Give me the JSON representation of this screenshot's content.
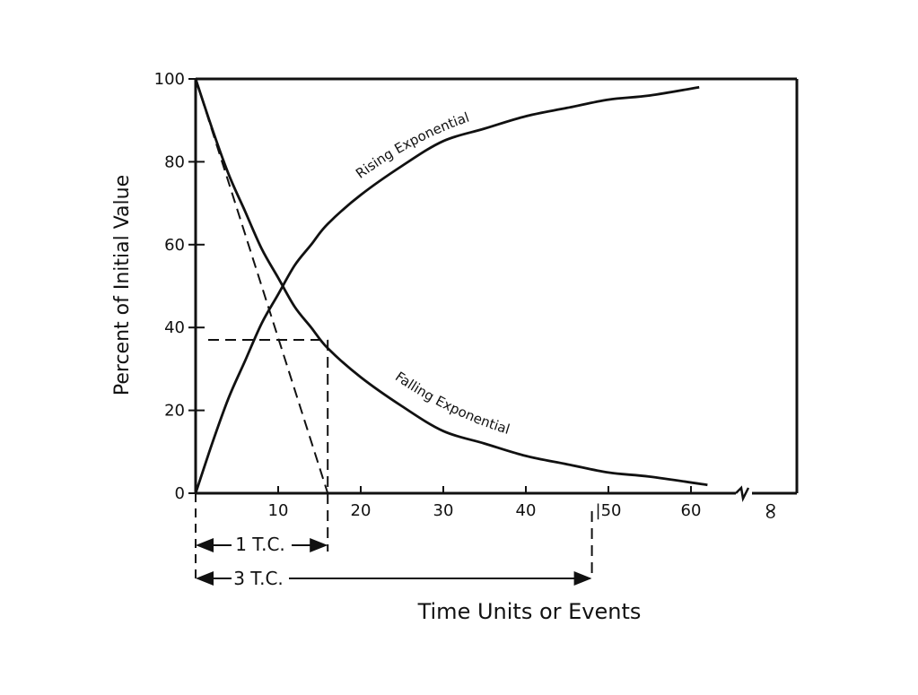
{
  "chart_data": {
    "type": "line",
    "title": "",
    "xlabel": "Time Units or Events",
    "ylabel": "Percent of Initial Value",
    "xlim": [
      0,
      72
    ],
    "ylim": [
      0,
      100
    ],
    "grid": false,
    "x_ticks": [
      {
        "value": 10,
        "label": "10"
      },
      {
        "value": 20,
        "label": "20"
      },
      {
        "value": 30,
        "label": "30"
      },
      {
        "value": 40,
        "label": "40"
      },
      {
        "value": 50,
        "label": "|50"
      },
      {
        "value": 60,
        "label": "60"
      }
    ],
    "infinity_label": "∞",
    "y_ticks": [
      {
        "value": 0,
        "label": "0"
      },
      {
        "value": 20,
        "label": "20"
      },
      {
        "value": 40,
        "label": "40"
      },
      {
        "value": 60,
        "label": "60"
      },
      {
        "value": 80,
        "label": "80"
      },
      {
        "value": 100,
        "label": "100"
      }
    ],
    "series": [
      {
        "name": "Rising Exponential",
        "x": [
          0,
          2,
          4,
          6,
          8,
          10,
          12,
          14,
          16,
          20,
          25,
          30,
          35,
          40,
          45,
          50,
          55,
          61
        ],
        "y": [
          0,
          12,
          23,
          32,
          41,
          48,
          55,
          60,
          65,
          72,
          79,
          85,
          88,
          91,
          93,
          95,
          96,
          98
        ]
      },
      {
        "name": "Falling Exponential",
        "x": [
          0,
          2,
          4,
          6,
          8,
          10,
          12,
          14,
          16,
          20,
          25,
          30,
          35,
          40,
          45,
          50,
          55,
          62
        ],
        "y": [
          100,
          88,
          77,
          68,
          59,
          52,
          45,
          40,
          35,
          28,
          21,
          15,
          12,
          9,
          7,
          5,
          4,
          2
        ]
      }
    ],
    "annotations": {
      "tangent_line": {
        "from": [
          0,
          100
        ],
        "to": [
          16,
          0
        ]
      },
      "tc_marker_y": 37,
      "one_tc": {
        "x": 16,
        "label": "1 T.C."
      },
      "three_tc": {
        "x": 48,
        "label": "3 T.C."
      }
    }
  }
}
